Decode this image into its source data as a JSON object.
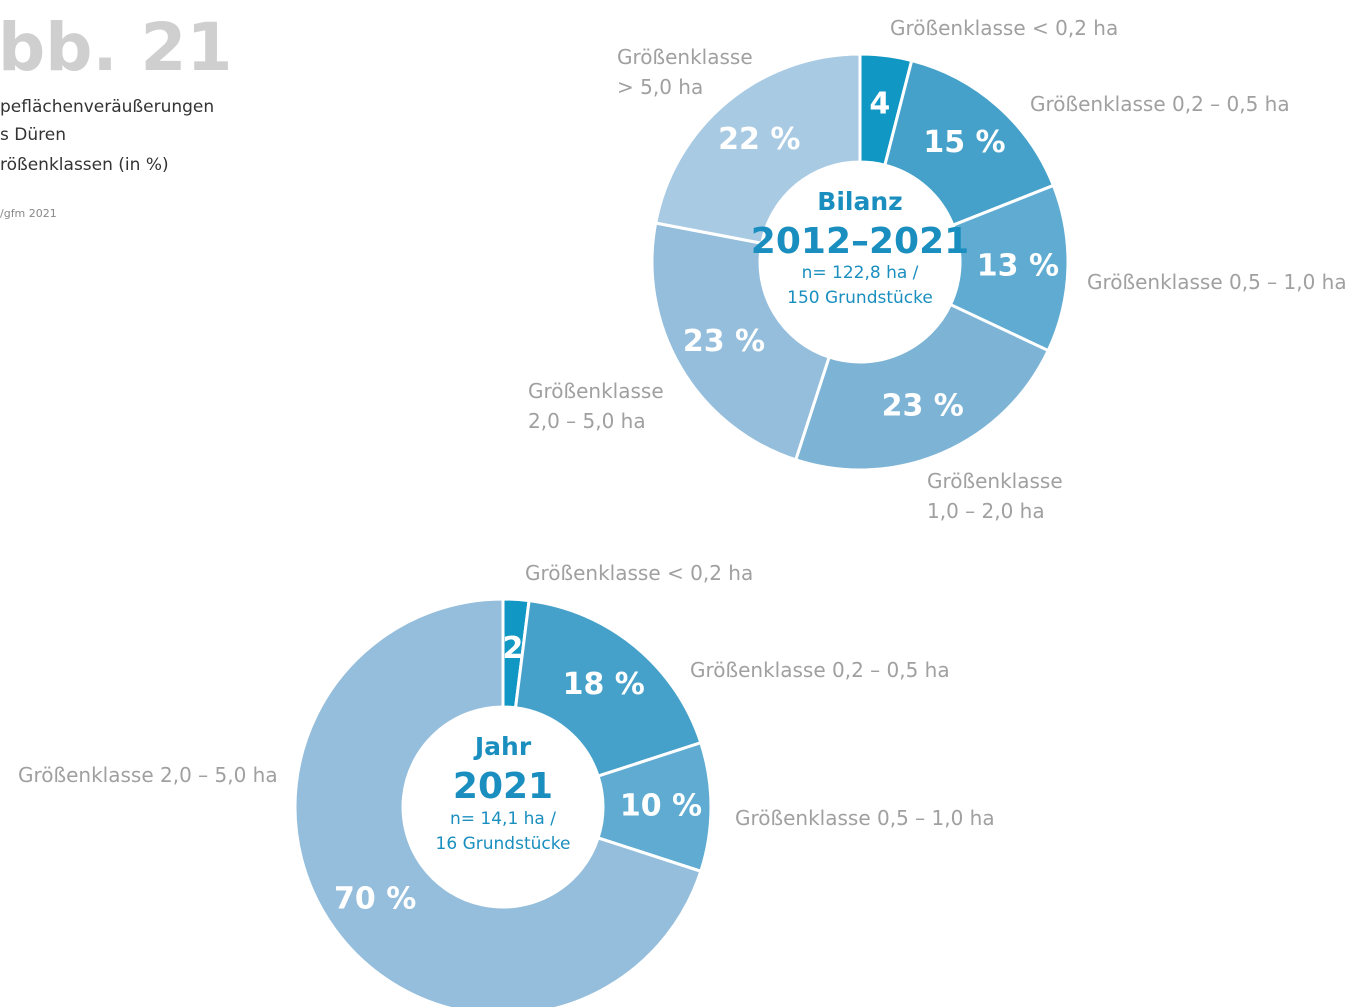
{
  "header": {
    "title": "bb. 21",
    "lines": [
      "peflächenveräußerungen",
      "s Düren",
      "rößenklassen (in %)"
    ],
    "source": "/gfm 2021"
  },
  "chart_data": [
    {
      "type": "donut",
      "center_text": [
        "Bilanz",
        "2012–2021",
        "n= 122,8 ha /",
        "150 Grundstücke"
      ],
      "categories": [
        "Größenklasse < 0,2 ha",
        "Größenklasse  0,2 – 0,5 ha",
        "Größenklasse  0,5 – 1,0 ha",
        "Größenklasse\n1,0 – 2,0 ha",
        "Größenklasse\n2,0 – 5,0 ha",
        "Größenklasse\n> 5,0 ha"
      ],
      "values": [
        4,
        15,
        13,
        23,
        23,
        22
      ],
      "value_labels": [
        "4",
        "15 %",
        "13 %",
        "23 %",
        "23 %",
        "22 %"
      ],
      "colors": [
        "#1197c4",
        "#45a1c9",
        "#5fabd1",
        "#7db4d6",
        "#94bedc",
        "#a9cae3"
      ]
    },
    {
      "type": "donut",
      "center_text": [
        "Jahr",
        "2021",
        "n= 14,1 ha /",
        "16 Grundstücke"
      ],
      "categories": [
        "Größenklasse < 0,2 ha",
        "Größenklasse 0,2 – 0,5 ha",
        "Größenklasse 0,5 – 1,0 ha",
        "Größenklasse 2,0 – 5,0 ha"
      ],
      "values": [
        2,
        18,
        10,
        70
      ],
      "value_labels": [
        "2",
        "18 %",
        "10 %",
        "70 %"
      ],
      "colors": [
        "#1197c4",
        "#45a1c9",
        "#5fabd1",
        "#94bedc"
      ]
    }
  ]
}
